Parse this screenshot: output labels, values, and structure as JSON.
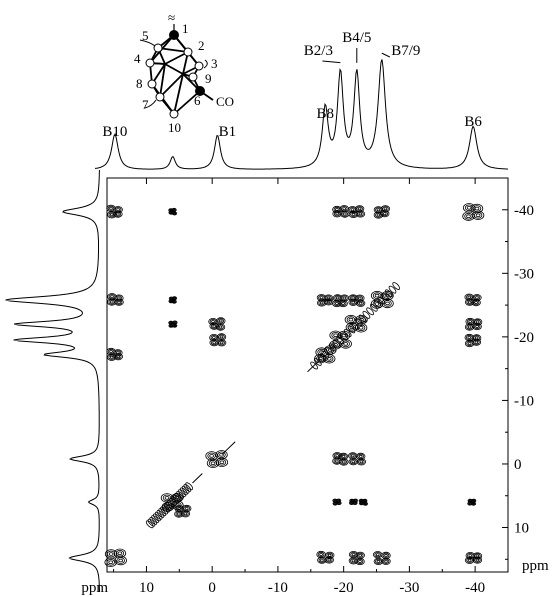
{
  "chart_data": {
    "type": "2d-nmr-contour",
    "x_axis": {
      "label": "ppm",
      "range": [
        16,
        -45
      ],
      "ticks": [
        10,
        0,
        -10,
        -20,
        -30,
        -40
      ],
      "tick_labels": [
        "10",
        "0",
        "-10",
        "-20",
        "-30",
        "-40"
      ]
    },
    "y_axis": {
      "label": "ppm",
      "range": [
        -45,
        17
      ],
      "ticks": [
        -40,
        -30,
        -20,
        -10,
        0,
        10
      ],
      "tick_labels": [
        "-40",
        "-30",
        "-20",
        "-10",
        "0",
        "10"
      ]
    },
    "peaks": [
      {
        "name": "B10",
        "label": "B10",
        "shift": 14.8,
        "height": 0.33,
        "width": 0.9
      },
      {
        "name": "B10b",
        "label": "",
        "shift": 6.0,
        "height": 0.12,
        "width": 0.7
      },
      {
        "name": "B1",
        "label": "B1",
        "shift": -0.8,
        "height": 0.32,
        "width": 0.8
      },
      {
        "name": "B8",
        "label": "B8",
        "shift": -17.2,
        "height": 0.55,
        "width": 0.8
      },
      {
        "name": "B2/3",
        "label": "B2/3",
        "shift": -19.5,
        "height": 0.86,
        "width": 0.8
      },
      {
        "name": "B4/5",
        "label": "B4/5",
        "shift": -22.0,
        "height": 0.86,
        "width": 0.8
      },
      {
        "name": "B7/9",
        "label": "B7/9",
        "shift": -25.8,
        "height": 1.0,
        "width": 1.0
      },
      {
        "name": "B6",
        "label": "B6",
        "shift": -39.7,
        "height": 0.4,
        "width": 1.0
      }
    ],
    "cross_peaks": [
      {
        "x": 14.8,
        "y": -39.7
      },
      {
        "x": 14.8,
        "y": -25.8
      },
      {
        "x": 14.8,
        "y": -17.2
      },
      {
        "x": 14.8,
        "y": 14.8
      },
      {
        "x": 6.0,
        "y": -39.7
      },
      {
        "x": 6.0,
        "y": -25.8
      },
      {
        "x": 6.0,
        "y": -22.0
      },
      {
        "x": -0.8,
        "y": -22.0
      },
      {
        "x": -0.8,
        "y": -19.5
      },
      {
        "x": -0.8,
        "y": -0.8
      },
      {
        "x": -19.5,
        "y": -39.7
      },
      {
        "x": -22.0,
        "y": -39.7
      },
      {
        "x": -25.8,
        "y": -39.7
      },
      {
        "x": -17.2,
        "y": 14.8
      },
      {
        "x": -22.0,
        "y": 14.8
      },
      {
        "x": -25.8,
        "y": 14.8
      },
      {
        "x": -19.5,
        "y": -0.8
      },
      {
        "x": -22.0,
        "y": -0.8
      },
      {
        "x": -39.7,
        "y": -39.7
      },
      {
        "x": -39.7,
        "y": -25.8
      },
      {
        "x": -39.7,
        "y": -22.0
      },
      {
        "x": -39.7,
        "y": -19.5
      },
      {
        "x": -39.7,
        "y": 14.8
      },
      {
        "x": -17.2,
        "y": -25.8
      },
      {
        "x": -19.5,
        "y": -25.8
      },
      {
        "x": -22.0,
        "y": -25.8
      },
      {
        "x": -17.2,
        "y": -17.2
      },
      {
        "x": -19.5,
        "y": -19.5
      },
      {
        "x": -22.0,
        "y": -22.0
      },
      {
        "x": -25.8,
        "y": -25.8
      },
      {
        "x": 6.0,
        "y": 6.0
      },
      {
        "x": 4.5,
        "y": 7.5
      },
      {
        "x": -19.0,
        "y": 6.0
      },
      {
        "x": -21.5,
        "y": 6.0
      },
      {
        "x": -23.0,
        "y": 6.0
      },
      {
        "x": -39.5,
        "y": 6.0
      }
    ],
    "diagonal": true,
    "molecule": {
      "vertices": [
        {
          "label": "1",
          "filled": true
        },
        {
          "label": "2",
          "filled": false
        },
        {
          "label": "3",
          "filled": false
        },
        {
          "label": "4",
          "filled": false
        },
        {
          "label": "5",
          "filled": false
        },
        {
          "label": "6",
          "filled": true
        },
        {
          "label": "7",
          "filled": false
        },
        {
          "label": "8",
          "filled": false
        },
        {
          "label": "9",
          "filled": false
        },
        {
          "label": "10",
          "filled": false
        }
      ],
      "substituent": "CO",
      "tilde": "≈"
    }
  }
}
